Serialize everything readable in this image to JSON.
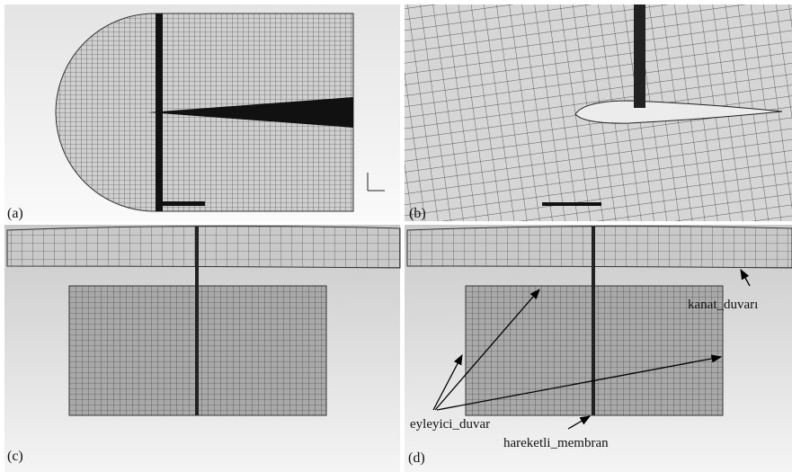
{
  "panels": [
    {
      "label": "(a)"
    },
    {
      "label": "(b)"
    },
    {
      "label": "(c)"
    },
    {
      "label": "(d)"
    }
  ],
  "annotations": {
    "wing_wall": "kanat_duvarı",
    "actuator_wall": "eyleyici_duvar",
    "moving_membrane": "hareketli_membran"
  }
}
